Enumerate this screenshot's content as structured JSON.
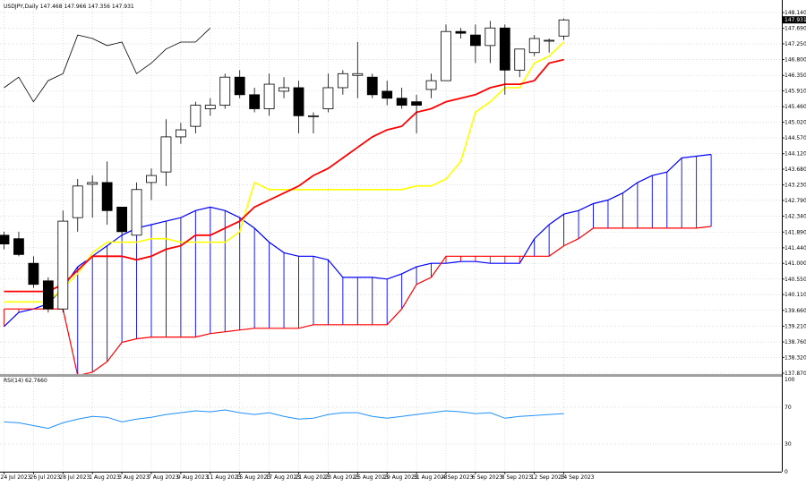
{
  "chart_data": [
    {
      "type": "candlestick",
      "symbol_header": "USDJPY,Daily  147.468 147.966 147.356 147.931",
      "current_price_label": "147.931",
      "price_ticks": [
        "148.140",
        "147.690",
        "147.250",
        "146.800",
        "146.350",
        "145.910",
        "145.460",
        "145.020",
        "144.570",
        "144.120",
        "143.680",
        "143.230",
        "142.790",
        "142.340",
        "141.890",
        "141.440",
        "141.000",
        "140.550",
        "140.110",
        "139.660",
        "139.210",
        "138.760",
        "138.320",
        "137.870"
      ],
      "date_labels": [
        "24 Jul 2023",
        "26 Jul 2023",
        "28 Jul 2023",
        "1 Aug 2023",
        "3 Aug 2023",
        "7 Aug 2023",
        "9 Aug 2023",
        "11 Aug 2023",
        "15 Aug 2023",
        "17 Aug 2023",
        "21 Aug 2023",
        "23 Aug 2023",
        "25 Aug 2023",
        "29 Aug 2023",
        "31 Aug 2023",
        "4 Sep 2023",
        "6 Sep 2023",
        "8 Sep 2023",
        "12 Sep 2023",
        "14 Sep 2023"
      ],
      "candles": [
        {
          "o": 141.8,
          "h": 141.9,
          "l": 141.4,
          "c": 141.55
        },
        {
          "o": 141.7,
          "h": 141.9,
          "l": 141.2,
          "c": 141.25
        },
        {
          "o": 141.0,
          "h": 141.2,
          "l": 140.3,
          "c": 140.4
        },
        {
          "o": 140.5,
          "h": 140.6,
          "l": 139.6,
          "c": 139.7
        },
        {
          "o": 139.7,
          "h": 142.5,
          "l": 139.6,
          "c": 142.2
        },
        {
          "o": 142.3,
          "h": 143.4,
          "l": 141.9,
          "c": 143.2
        },
        {
          "o": 143.25,
          "h": 143.5,
          "l": 142.3,
          "c": 143.3
        },
        {
          "o": 143.3,
          "h": 143.9,
          "l": 142.1,
          "c": 142.5
        },
        {
          "o": 142.6,
          "h": 142.6,
          "l": 141.8,
          "c": 141.9
        },
        {
          "o": 141.8,
          "h": 143.3,
          "l": 141.8,
          "c": 143.1
        },
        {
          "o": 143.3,
          "h": 143.7,
          "l": 142.8,
          "c": 143.5
        },
        {
          "o": 143.6,
          "h": 145.1,
          "l": 143.2,
          "c": 144.6
        },
        {
          "o": 144.6,
          "h": 145.0,
          "l": 144.4,
          "c": 144.8
        },
        {
          "o": 144.9,
          "h": 145.6,
          "l": 144.7,
          "c": 145.5
        },
        {
          "o": 145.4,
          "h": 145.7,
          "l": 145.2,
          "c": 145.5
        },
        {
          "o": 145.5,
          "h": 146.4,
          "l": 145.4,
          "c": 146.3
        },
        {
          "o": 146.3,
          "h": 146.5,
          "l": 145.7,
          "c": 145.8
        },
        {
          "o": 145.8,
          "h": 146.0,
          "l": 145.3,
          "c": 145.4
        },
        {
          "o": 145.4,
          "h": 146.4,
          "l": 145.2,
          "c": 146.1
        },
        {
          "o": 145.9,
          "h": 146.3,
          "l": 145.7,
          "c": 146.0
        },
        {
          "o": 146.0,
          "h": 146.2,
          "l": 144.7,
          "c": 145.2
        },
        {
          "o": 145.2,
          "h": 145.3,
          "l": 144.7,
          "c": 145.2
        },
        {
          "o": 145.4,
          "h": 146.4,
          "l": 145.3,
          "c": 146.0
        },
        {
          "o": 146.0,
          "h": 146.5,
          "l": 145.8,
          "c": 146.4
        },
        {
          "o": 146.35,
          "h": 147.3,
          "l": 145.7,
          "c": 146.4
        },
        {
          "o": 146.3,
          "h": 146.4,
          "l": 145.7,
          "c": 145.8
        },
        {
          "o": 145.9,
          "h": 146.2,
          "l": 145.5,
          "c": 145.7
        },
        {
          "o": 145.7,
          "h": 146.0,
          "l": 145.4,
          "c": 145.5
        },
        {
          "o": 145.6,
          "h": 145.8,
          "l": 144.7,
          "c": 145.5
        },
        {
          "o": 145.95,
          "h": 146.4,
          "l": 145.7,
          "c": 146.2
        },
        {
          "o": 146.2,
          "h": 147.8,
          "l": 146.2,
          "c": 147.6
        },
        {
          "o": 147.6,
          "h": 147.7,
          "l": 147.4,
          "c": 147.55
        },
        {
          "o": 147.5,
          "h": 147.8,
          "l": 146.7,
          "c": 147.2
        },
        {
          "o": 147.2,
          "h": 147.9,
          "l": 146.7,
          "c": 147.7
        },
        {
          "o": 147.7,
          "h": 147.8,
          "l": 145.8,
          "c": 146.5
        },
        {
          "o": 146.5,
          "h": 147.1,
          "l": 146.3,
          "c": 147.1
        },
        {
          "o": 147.0,
          "h": 147.5,
          "l": 146.9,
          "c": 147.4
        },
        {
          "o": 147.35,
          "h": 147.4,
          "l": 147.0,
          "c": 147.35
        },
        {
          "o": 147.47,
          "h": 147.97,
          "l": 147.36,
          "c": 147.93
        }
      ],
      "indicators": {
        "tenkan_sen": [
          139.9,
          139.9,
          139.9,
          139.9,
          140.3,
          140.7,
          141.3,
          141.6,
          141.6,
          141.6,
          141.7,
          141.7,
          141.6,
          141.6,
          141.6,
          141.6,
          141.9,
          143.3,
          143.1,
          143.1,
          143.1,
          143.1,
          143.1,
          143.1,
          143.1,
          143.1,
          143.1,
          143.1,
          143.2,
          143.2,
          143.4,
          143.9,
          145.3,
          145.6,
          146.0,
          146.0,
          146.7,
          146.9,
          147.3
        ],
        "kijun_sen": [
          140.2,
          140.2,
          140.2,
          140.2,
          140.4,
          140.8,
          141.2,
          141.2,
          141.2,
          141.1,
          141.2,
          141.4,
          141.5,
          141.8,
          141.8,
          142.0,
          142.2,
          142.6,
          142.8,
          143.0,
          143.2,
          143.5,
          143.7,
          144.0,
          144.3,
          144.6,
          144.8,
          144.9,
          145.3,
          145.4,
          145.6,
          145.7,
          145.8,
          146.0,
          146.1,
          146.1,
          146.2,
          146.7,
          146.8
        ],
        "chikou_span": [
          146.0,
          146.3,
          145.6,
          146.2,
          146.4,
          147.5,
          147.4,
          147.2,
          147.3,
          146.4,
          146.7,
          147.1,
          147.3,
          147.3,
          147.7
        ],
        "senkou_span_a": [
          139.2,
          139.6,
          139.7,
          139.85,
          140.3,
          140.9,
          141.2,
          141.5,
          141.8,
          142.0,
          142.1,
          142.2,
          142.3,
          142.5,
          142.6,
          142.5,
          142.3,
          142.0,
          141.6,
          141.3,
          141.2,
          141.2,
          141.1,
          140.6,
          140.6,
          140.6,
          140.55,
          140.7,
          140.9,
          141.0,
          141.0,
          141.05,
          141.05,
          141.0,
          141.0,
          141.0,
          141.7,
          142.1,
          142.4,
          142.5,
          142.7,
          142.8,
          143.0,
          143.3,
          143.5,
          143.6,
          144.0,
          144.05,
          144.1
        ],
        "senkou_span_b": [
          139.7,
          139.7,
          139.7,
          139.7,
          139.7,
          137.8,
          137.9,
          138.2,
          138.75,
          138.85,
          138.9,
          138.9,
          138.9,
          138.9,
          139.0,
          139.05,
          139.1,
          139.15,
          139.15,
          139.15,
          139.15,
          139.25,
          139.25,
          139.25,
          139.25,
          139.25,
          139.25,
          139.7,
          140.4,
          140.6,
          141.2,
          141.2,
          141.2,
          141.2,
          141.2,
          141.2,
          141.2,
          141.2,
          141.5,
          141.7,
          142.0,
          142.0,
          142.0,
          142.0,
          142.0,
          142.0,
          142.0,
          142.0,
          142.05
        ]
      }
    },
    {
      "type": "line",
      "indicator_header": "RSI(14) 62.7660",
      "ylim": [
        0,
        100
      ],
      "y_ticks": [
        "100",
        "70",
        "30",
        "0"
      ],
      "values": [
        54,
        53,
        50,
        47,
        53,
        57,
        60,
        59,
        54,
        57,
        59,
        62,
        64,
        66,
        65,
        67,
        64,
        62,
        64,
        60,
        57,
        58,
        62,
        64,
        64,
        60,
        58,
        60,
        62,
        64,
        66,
        65,
        63,
        64,
        58,
        60,
        61,
        62,
        63
      ]
    }
  ]
}
